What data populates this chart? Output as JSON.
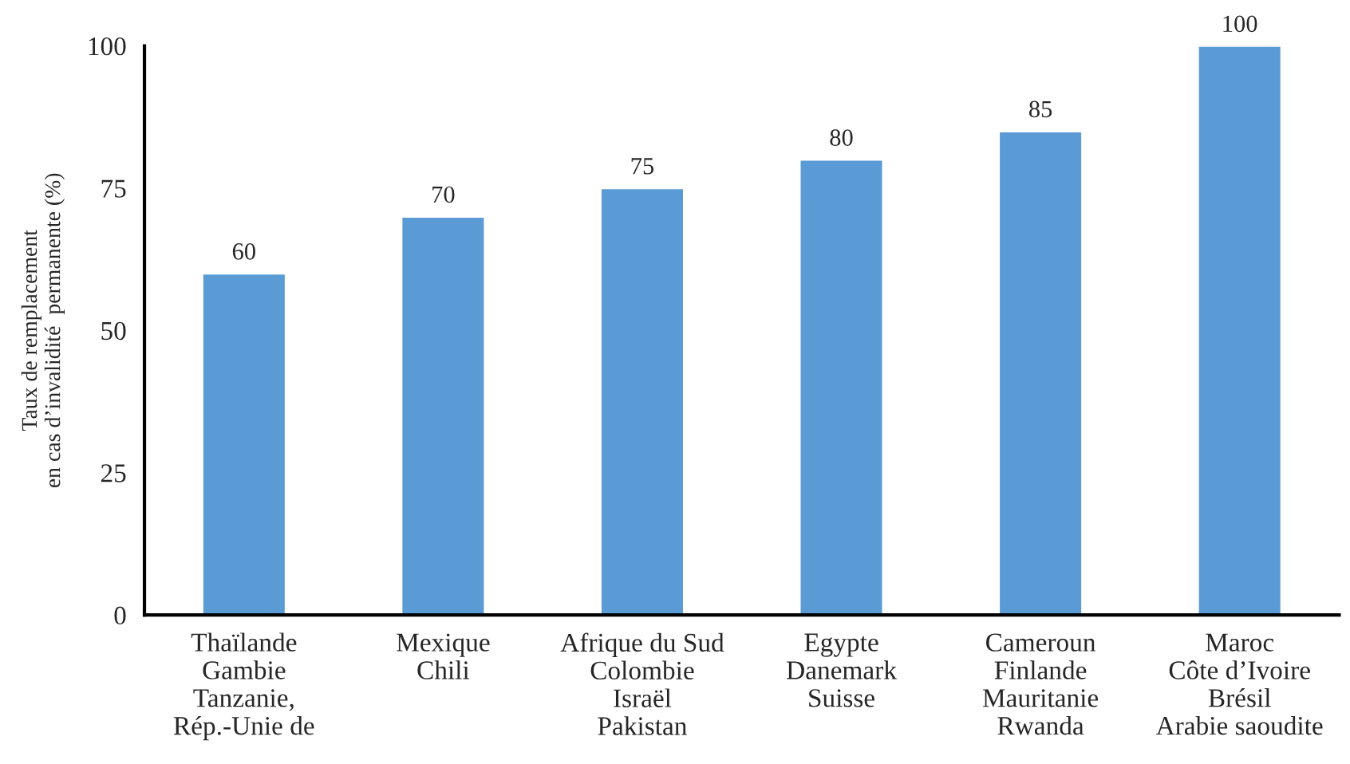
{
  "chart_data": {
    "type": "bar",
    "categories": [
      "Thaïlande\nGambie\nTanzanie,\nRép.-Unie de",
      "Mexique\nChili",
      "Afrique du Sud\nColombie\nIsraël\nPakistan",
      "Egypte\nDanemark\nSuisse",
      "Cameroun\nFinlande\nMauritanie\nRwanda",
      "Maroc\nCôte d’Ivoire\nBrésil\nArabie saoudite"
    ],
    "values": [
      60,
      70,
      75,
      80,
      85,
      100
    ],
    "color": "#5b9bd5",
    "ylabel": "Taux de remplacement\nen cas d’invalidité  permanente (%)",
    "ylim": [
      0,
      100
    ],
    "yticks": [
      0,
      25,
      50,
      75,
      100
    ],
    "data_labels": true,
    "grid": false,
    "legend": false
  }
}
